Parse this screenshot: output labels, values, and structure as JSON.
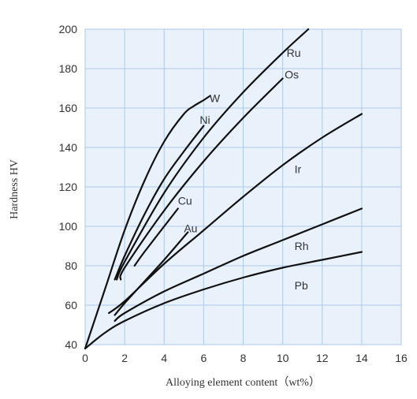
{
  "chart_data": {
    "type": "line",
    "title": "",
    "xlabel": "Alloying element content（wt%）",
    "ylabel": "Hardness HV",
    "xlim": [
      0,
      16
    ],
    "ylim": [
      40,
      200
    ],
    "xticks": [
      0,
      2,
      4,
      6,
      8,
      10,
      12,
      14,
      16
    ],
    "yticks": [
      40,
      60,
      80,
      100,
      120,
      140,
      160,
      180,
      200
    ],
    "grid": true,
    "legend": "none",
    "colors": {
      "plot_background": "#e9f1fb",
      "grid": "#aec9e8",
      "line": "#111111"
    },
    "series": [
      {
        "name": "W",
        "x": [
          0,
          1,
          2,
          3,
          4,
          5,
          5.5,
          6,
          6.3
        ],
        "y": [
          38,
          68,
          98,
          123,
          143,
          157,
          161,
          164,
          166
        ]
      },
      {
        "name": "Ni",
        "x": [
          1.5,
          2,
          3,
          4,
          5,
          6
        ],
        "y": [
          73,
          85,
          106,
          124,
          138,
          151
        ]
      },
      {
        "name": "Ru",
        "x": [
          1.6,
          2,
          4,
          6,
          8,
          10,
          11.3
        ],
        "y": [
          73,
          82,
          117,
          145,
          168,
          188,
          200
        ]
      },
      {
        "name": "Os",
        "x": [
          1.8,
          2,
          4,
          6,
          8,
          10
        ],
        "y": [
          73,
          79,
          108,
          133,
          155,
          175
        ]
      },
      {
        "name": "Cu",
        "x": [
          2.5,
          3,
          4,
          4.7
        ],
        "y": [
          80,
          87,
          100,
          109
        ]
      },
      {
        "name": "Au",
        "x": [
          1.5,
          2,
          3,
          4,
          5.2
        ],
        "y": [
          55,
          61,
          72,
          83,
          97
        ]
      },
      {
        "name": "Ir",
        "x": [
          1.2,
          2,
          4,
          6,
          8,
          10,
          12,
          14
        ],
        "y": [
          56,
          62,
          81,
          98,
          115,
          131,
          145,
          157
        ]
      },
      {
        "name": "Rh",
        "x": [
          1.5,
          2,
          4,
          6,
          8,
          10,
          12,
          14
        ],
        "y": [
          52,
          56,
          67,
          76,
          85,
          93,
          101,
          109
        ]
      },
      {
        "name": "Pb",
        "x": [
          0,
          1,
          2,
          4,
          6,
          8,
          10,
          12,
          14
        ],
        "y": [
          38,
          46,
          52,
          61,
          68,
          74,
          79,
          83,
          87
        ]
      }
    ],
    "series_labels": [
      {
        "name": "W",
        "x": 6.3,
        "y": 165
      },
      {
        "name": "Ni",
        "x": 5.8,
        "y": 154
      },
      {
        "name": "Ru",
        "x": 10.2,
        "y": 188
      },
      {
        "name": "Os",
        "x": 10.1,
        "y": 177
      },
      {
        "name": "Cu",
        "x": 4.7,
        "y": 113
      },
      {
        "name": "Au",
        "x": 5.0,
        "y": 99
      },
      {
        "name": "Ir",
        "x": 10.6,
        "y": 129
      },
      {
        "name": "Rh",
        "x": 10.6,
        "y": 90
      },
      {
        "name": "Pb",
        "x": 10.6,
        "y": 70
      }
    ]
  }
}
